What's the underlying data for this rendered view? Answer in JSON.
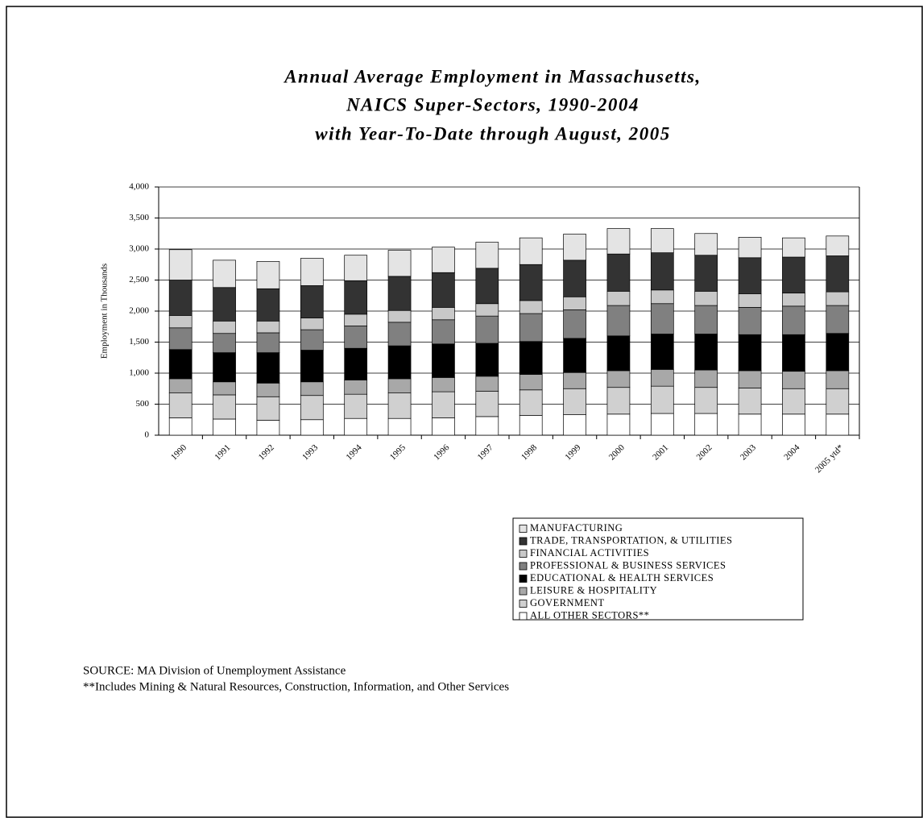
{
  "chart_data": {
    "type": "stacked_bar",
    "title": [
      "Annual Average Employment in Massachusetts,",
      "NAICS Super-Sectors, 1990-2004",
      "with Year-To-Date through August, 2005"
    ],
    "y_label": "Employment in Thousands",
    "categories": [
      "1990",
      "1991",
      "1992",
      "1993",
      "1994",
      "1995",
      "1996",
      "1997",
      "1998",
      "1999",
      "2000",
      "2001",
      "2002",
      "2003",
      "2004",
      "2005 ytd*"
    ],
    "series": [
      {
        "name": "MANUFACTURING",
        "color": "#e4e4e4",
        "values": [
          490,
          440,
          440,
          440,
          410,
          420,
          410,
          420,
          430,
          420,
          410,
          390,
          350,
          330,
          310,
          320
        ]
      },
      {
        "name": "TRADE, TRANSPORTATION, & UTILITIES",
        "color": "#333333",
        "values": [
          570,
          540,
          520,
          520,
          540,
          550,
          560,
          570,
          580,
          590,
          600,
          600,
          580,
          580,
          580,
          580
        ]
      },
      {
        "name": "FINANCIAL ACTIVITIES",
        "color": "#c8c8c8",
        "values": [
          200,
          200,
          190,
          190,
          190,
          190,
          200,
          200,
          210,
          210,
          230,
          220,
          230,
          220,
          210,
          220
        ]
      },
      {
        "name": "PROFESSIONAL & BUSINESS SERVICES",
        "color": "#808080",
        "values": [
          350,
          310,
          320,
          330,
          360,
          380,
          390,
          440,
          450,
          460,
          490,
          490,
          460,
          440,
          460,
          450
        ]
      },
      {
        "name": "EDUCATIONAL & HEALTH SERVICES",
        "color": "#000000",
        "values": [
          470,
          470,
          490,
          510,
          510,
          530,
          540,
          530,
          530,
          550,
          560,
          570,
          580,
          580,
          590,
          600
        ]
      },
      {
        "name": "LEISURE & HOSPITALITY",
        "color": "#a8a8a8",
        "values": [
          230,
          210,
          220,
          220,
          230,
          230,
          230,
          240,
          250,
          260,
          270,
          270,
          280,
          280,
          280,
          290
        ]
      },
      {
        "name": "GOVERNMENT",
        "color": "#d0d0d0",
        "values": [
          400,
          390,
          380,
          390,
          390,
          410,
          420,
          410,
          410,
          420,
          430,
          440,
          420,
          420,
          410,
          410
        ]
      },
      {
        "name": "ALL OTHER SECTORS**",
        "color": "#ffffff",
        "values": [
          280,
          260,
          240,
          250,
          270,
          270,
          280,
          300,
          320,
          330,
          340,
          350,
          350,
          340,
          340,
          340
        ]
      }
    ],
    "ylim": [
      0,
      4000
    ],
    "yticks": [
      0,
      500,
      {
        "value": 1000,
        "label": "1,000"
      },
      {
        "value": 1500,
        "label": "1,500"
      },
      {
        "value": 2000,
        "label": "2,000"
      },
      {
        "value": 2500,
        "label": "2,500"
      },
      {
        "value": 3000,
        "label": "3,000"
      },
      {
        "value": 3500,
        "label": "3,500"
      },
      {
        "value": 4000,
        "label": "4,000"
      }
    ],
    "grid": true,
    "source": "SOURCE:  MA Division of Unemployment Assistance",
    "footnote": "**Includes Mining & Natural Resources, Construction, Information, and Other Services"
  }
}
